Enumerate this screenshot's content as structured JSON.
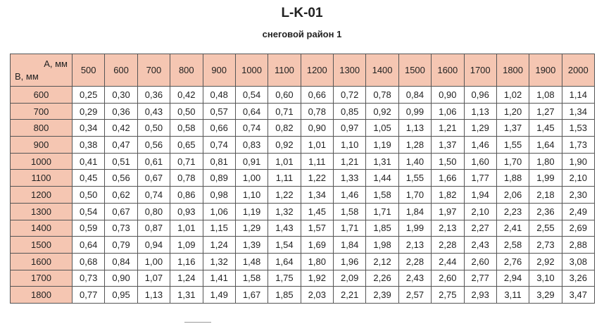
{
  "title": "L-K-01",
  "subtitle": "снеговой район 1",
  "table": {
    "corner": [
      "А, мм",
      "В, мм"
    ],
    "columns": [
      "500",
      "600",
      "700",
      "800",
      "900",
      "1000",
      "1100",
      "1200",
      "1300",
      "1400",
      "1500",
      "1600",
      "1700",
      "1800",
      "1900",
      "2000"
    ],
    "rows": [
      {
        "label": "600",
        "values": [
          "0,25",
          "0,30",
          "0,36",
          "0,42",
          "0,48",
          "0,54",
          "0,60",
          "0,66",
          "0,72",
          "0,78",
          "0,84",
          "0,90",
          "0,96",
          "1,02",
          "1,08",
          "1,14"
        ]
      },
      {
        "label": "700",
        "values": [
          "0,29",
          "0,36",
          "0,43",
          "0,50",
          "0,57",
          "0,64",
          "0,71",
          "0,78",
          "0,85",
          "0,92",
          "0,99",
          "1,06",
          "1,13",
          "1,20",
          "1,27",
          "1,34"
        ]
      },
      {
        "label": "800",
        "values": [
          "0,34",
          "0,42",
          "0,50",
          "0,58",
          "0,66",
          "0,74",
          "0,82",
          "0,90",
          "0,97",
          "1,05",
          "1,13",
          "1,21",
          "1,29",
          "1,37",
          "1,45",
          "1,53"
        ]
      },
      {
        "label": "900",
        "values": [
          "0,38",
          "0,47",
          "0,56",
          "0,65",
          "0,74",
          "0,83",
          "0,92",
          "1,01",
          "1,10",
          "1,19",
          "1,28",
          "1,37",
          "1,46",
          "1,55",
          "1,64",
          "1,73"
        ]
      },
      {
        "label": "1000",
        "values": [
          "0,41",
          "0,51",
          "0,61",
          "0,71",
          "0,81",
          "0,91",
          "1,01",
          "1,11",
          "1,21",
          "1,31",
          "1,40",
          "1,50",
          "1,60",
          "1,70",
          "1,80",
          "1,90"
        ]
      },
      {
        "label": "1100",
        "values": [
          "0,45",
          "0,56",
          "0,67",
          "0,78",
          "0,89",
          "1,00",
          "1,11",
          "1,22",
          "1,33",
          "1,44",
          "1,55",
          "1,66",
          "1,77",
          "1,88",
          "1,99",
          "2,10"
        ]
      },
      {
        "label": "1200",
        "values": [
          "0,50",
          "0,62",
          "0,74",
          "0,86",
          "0,98",
          "1,10",
          "1,22",
          "1,34",
          "1,46",
          "1,58",
          "1,70",
          "1,82",
          "1,94",
          "2,06",
          "2,18",
          "2,30"
        ]
      },
      {
        "label": "1300",
        "values": [
          "0,54",
          "0,67",
          "0,80",
          "0,93",
          "1,06",
          "1,19",
          "1,32",
          "1,45",
          "1,58",
          "1,71",
          "1,84",
          "1,97",
          "2,10",
          "2,23",
          "2,36",
          "2,49"
        ]
      },
      {
        "label": "1400",
        "values": [
          "0,59",
          "0,73",
          "0,87",
          "1,01",
          "1,15",
          "1,29",
          "1,43",
          "1,57",
          "1,71",
          "1,85",
          "1,99",
          "2,13",
          "2,27",
          "2,41",
          "2,55",
          "2,69"
        ]
      },
      {
        "label": "1500",
        "values": [
          "0,64",
          "0,79",
          "0,94",
          "1,09",
          "1,24",
          "1,39",
          "1,54",
          "1,69",
          "1,84",
          "1,98",
          "2,13",
          "2,28",
          "2,43",
          "2,58",
          "2,73",
          "2,88"
        ]
      },
      {
        "label": "1600",
        "values": [
          "0,68",
          "0,84",
          "1,00",
          "1,16",
          "1,32",
          "1,48",
          "1,64",
          "1,80",
          "1,96",
          "2,12",
          "2,28",
          "2,44",
          "2,60",
          "2,76",
          "2,92",
          "3,08"
        ]
      },
      {
        "label": "1700",
        "values": [
          "0,73",
          "0,90",
          "1,07",
          "1,24",
          "1,41",
          "1,58",
          "1,75",
          "1,92",
          "2,09",
          "2,26",
          "2,43",
          "2,60",
          "2,77",
          "2,94",
          "3,10",
          "3,26"
        ]
      },
      {
        "label": "1800",
        "values": [
          "0,77",
          "0,95",
          "1,13",
          "1,31",
          "1,49",
          "1,67",
          "1,85",
          "2,03",
          "2,21",
          "2,39",
          "2,57",
          "2,75",
          "2,93",
          "3,11",
          "3,29",
          "3,47"
        ]
      }
    ]
  }
}
